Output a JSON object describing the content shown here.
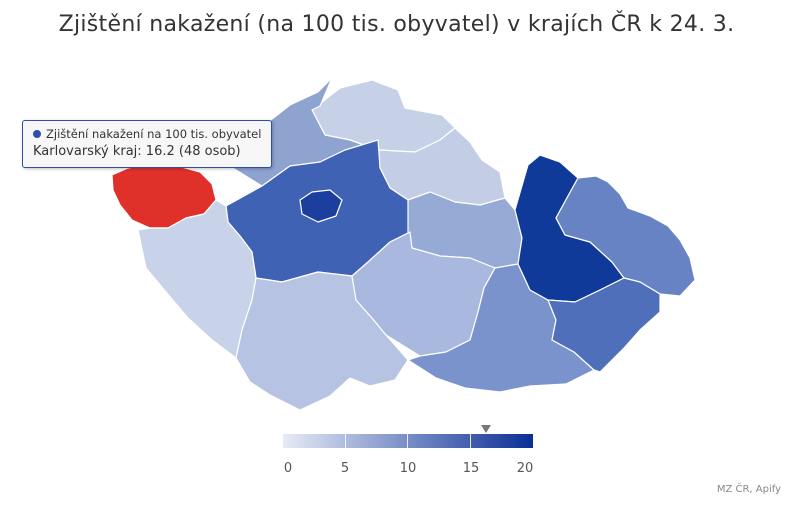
{
  "title": "Zjištění nakažení (na 100 tis. obyvatel) v krajích ČR k 24. 3.",
  "tooltip": {
    "series": "Zjištění nakažení na 100 tis. obyvatel",
    "text": "Karlovarský kraj: 16.2 (48 osob)",
    "dot_color": "#2f4fa8"
  },
  "legend": {
    "labels": [
      "0",
      "5",
      "10",
      "15",
      "20"
    ],
    "color_min": "#e6ebf5",
    "color_max": "#0a2e96",
    "marker_value": 16.2
  },
  "credit": "MZ ČR, Apify",
  "colors": {
    "highlight": "#e0302a"
  }
}
